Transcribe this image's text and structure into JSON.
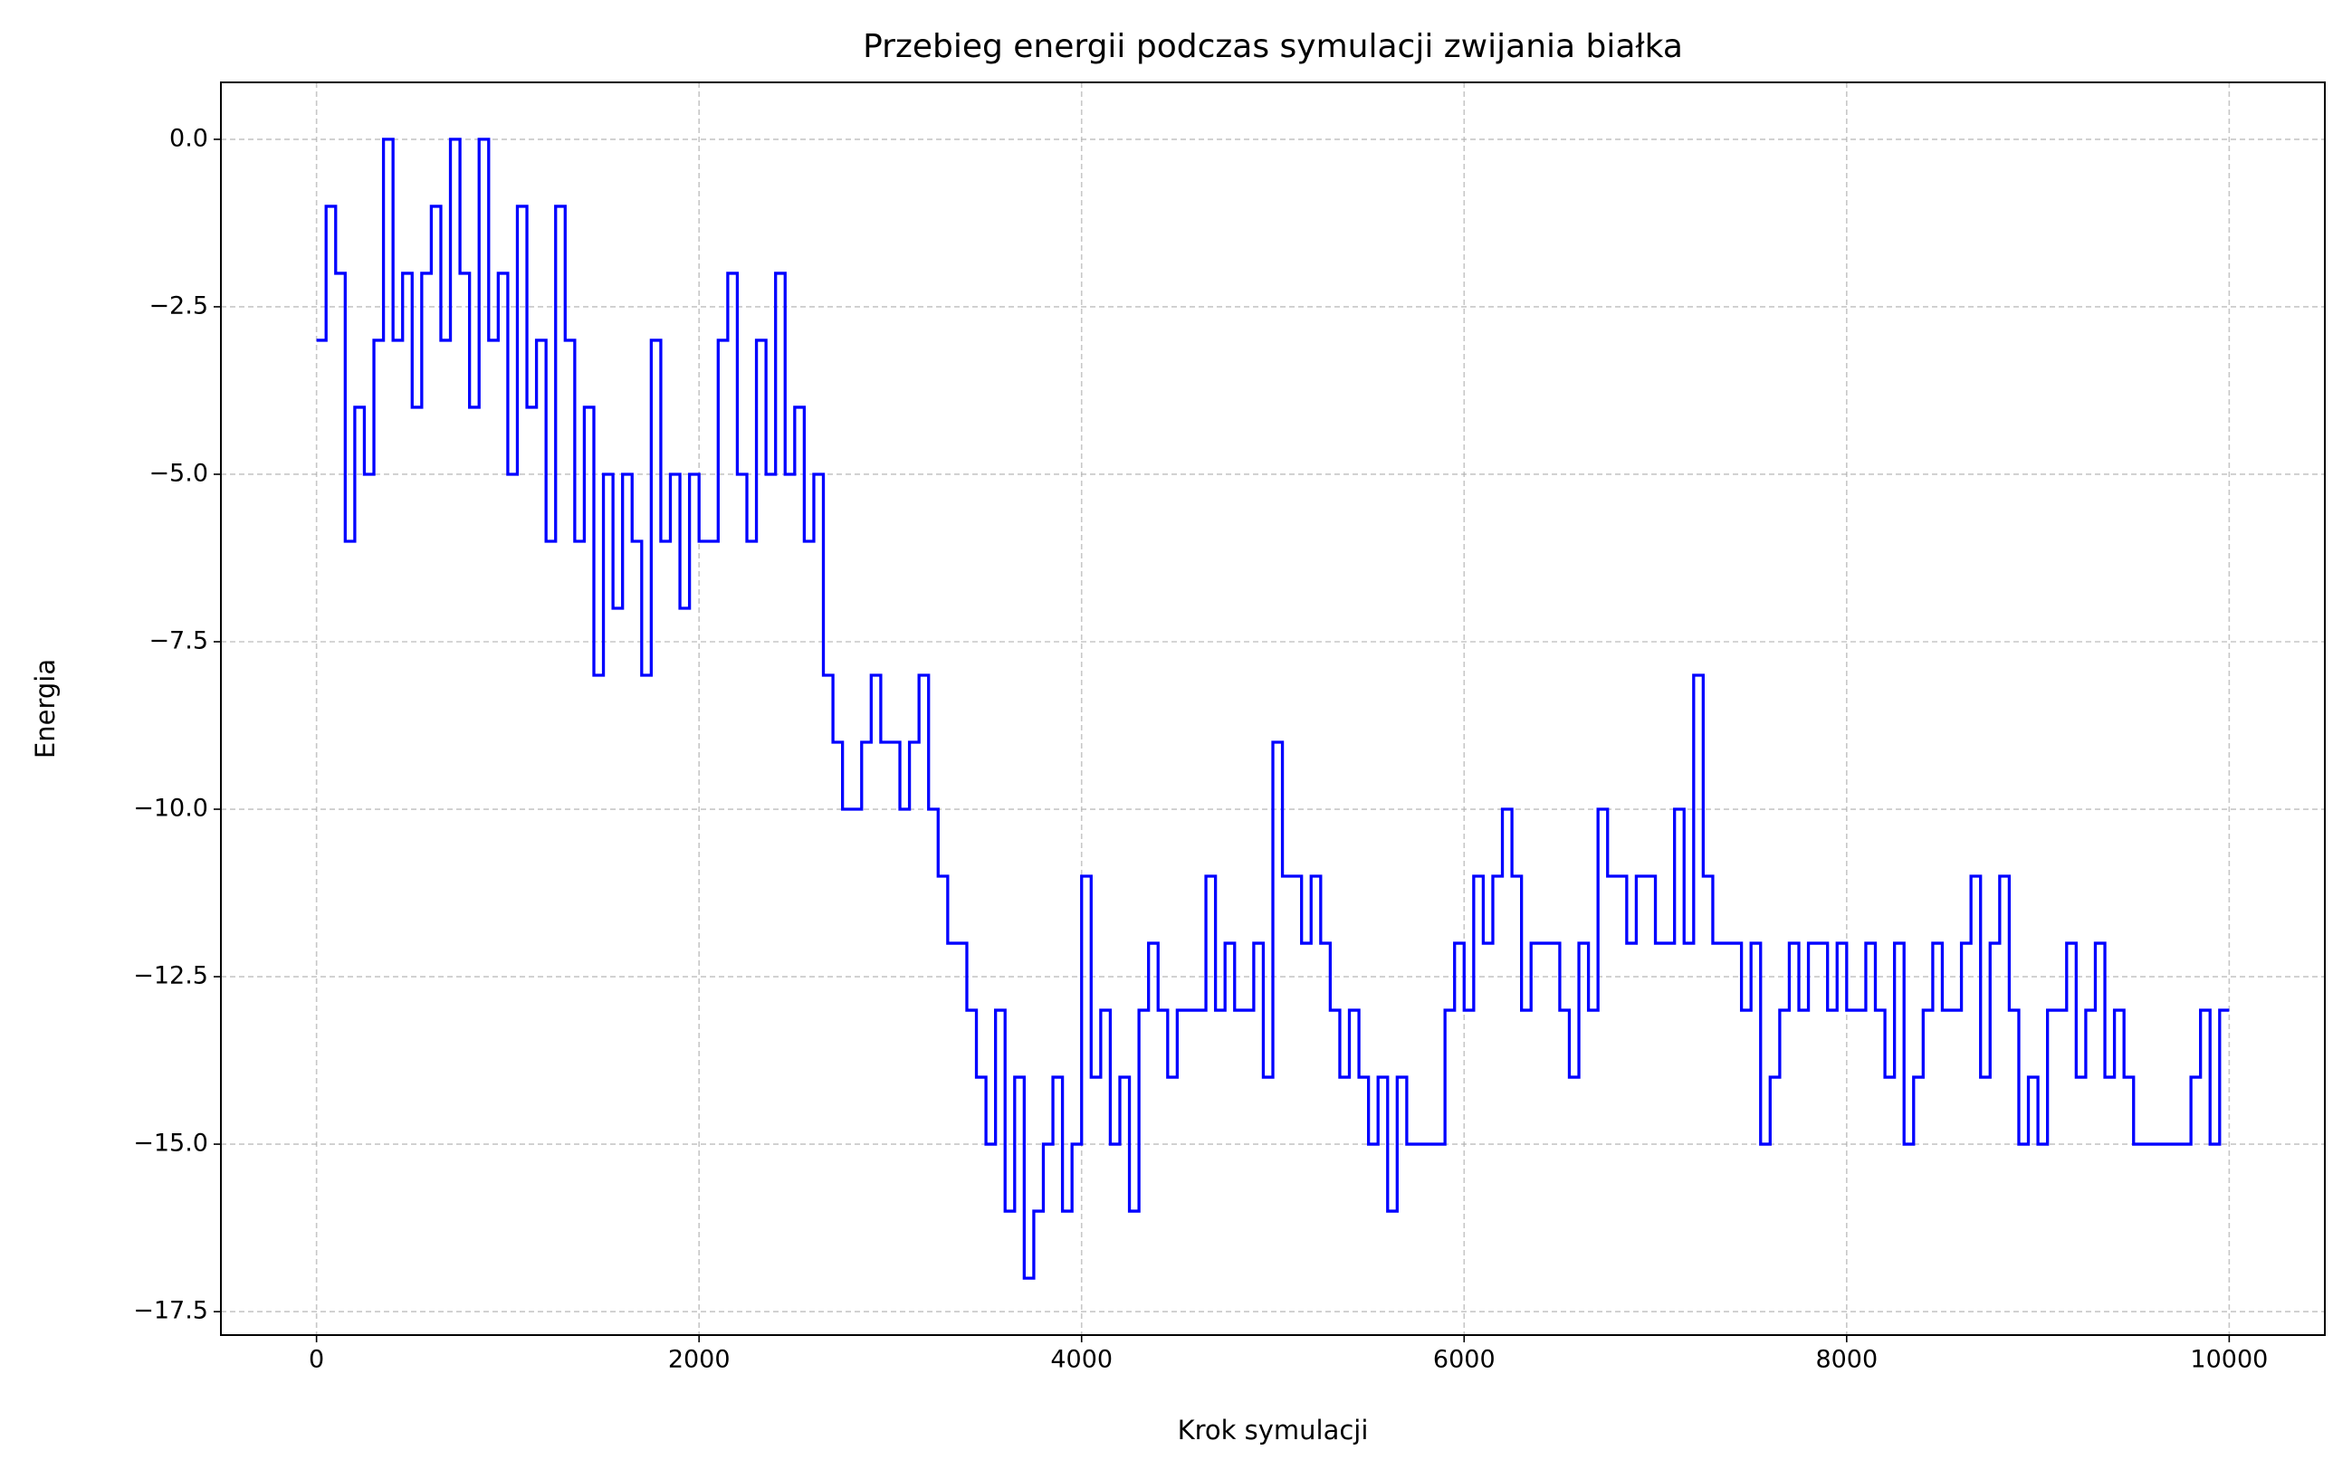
{
  "chart_data": {
    "type": "line",
    "title": "Przebieg energii podczas symulacji zwijania białka",
    "xlabel": "Krok symulacji",
    "ylabel": "Energia",
    "drawstyle": "steps-post",
    "grid": true,
    "xlim": [
      -500,
      10500
    ],
    "ylim": [
      -17.85,
      0.85
    ],
    "xticks": [
      0,
      2000,
      4000,
      6000,
      8000,
      10000
    ],
    "yticks": [
      {
        "value": 0,
        "label": "0.0"
      },
      {
        "value": -2.5,
        "label": "−2.5"
      },
      {
        "value": -5,
        "label": "−5.0"
      },
      {
        "value": -7.5,
        "label": "−7.5"
      },
      {
        "value": -10,
        "label": "−10.0"
      },
      {
        "value": -12.5,
        "label": "−12.5"
      },
      {
        "value": -15,
        "label": "−15.0"
      },
      {
        "value": -17.5,
        "label": "−17.5"
      }
    ],
    "x": [
      0,
      50,
      100,
      150,
      200,
      250,
      300,
      350,
      400,
      450,
      500,
      550,
      600,
      650,
      700,
      750,
      800,
      850,
      900,
      950,
      1000,
      1050,
      1100,
      1150,
      1200,
      1250,
      1300,
      1350,
      1400,
      1450,
      1500,
      1550,
      1600,
      1650,
      1700,
      1750,
      1800,
      1850,
      1900,
      1950,
      2000,
      2050,
      2100,
      2150,
      2200,
      2250,
      2300,
      2350,
      2400,
      2450,
      2500,
      2550,
      2600,
      2650,
      2700,
      2750,
      2800,
      2850,
      2900,
      2950,
      3000,
      3050,
      3100,
      3150,
      3200,
      3250,
      3300,
      3350,
      3400,
      3450,
      3500,
      3550,
      3600,
      3650,
      3700,
      3750,
      3800,
      3850,
      3900,
      3950,
      4000,
      4050,
      4100,
      4150,
      4200,
      4250,
      4300,
      4350,
      4400,
      4450,
      4500,
      4550,
      4600,
      4650,
      4700,
      4750,
      4800,
      4850,
      4900,
      4950,
      5000,
      5050,
      5100,
      5150,
      5200,
      5250,
      5300,
      5350,
      5400,
      5450,
      5500,
      5550,
      5600,
      5650,
      5700,
      5750,
      5800,
      5850,
      5900,
      5950,
      6000,
      6050,
      6100,
      6150,
      6200,
      6250,
      6300,
      6350,
      6400,
      6450,
      6500,
      6550,
      6600,
      6650,
      6700,
      6750,
      6800,
      6850,
      6900,
      6950,
      7000,
      7050,
      7100,
      7150,
      7200,
      7250,
      7300,
      7350,
      7400,
      7450,
      7500,
      7550,
      7600,
      7650,
      7700,
      7750,
      7800,
      7850,
      7900,
      7950,
      8000,
      8050,
      8100,
      8150,
      8200,
      8250,
      8300,
      8350,
      8400,
      8450,
      8500,
      8550,
      8600,
      8650,
      8700,
      8750,
      8800,
      8850,
      8900,
      8950,
      9000,
      9050,
      9100,
      9150,
      9200,
      9250,
      9300,
      9350,
      9400,
      9450,
      9500,
      9550,
      9600,
      9650,
      9700,
      9750,
      9800,
      9850,
      9900,
      9950,
      10000
    ],
    "series": [
      {
        "name": "Energia",
        "color": "#0000ff",
        "values": [
          -3,
          -1,
          -2,
          -6,
          -4,
          -5,
          -3,
          0,
          -3,
          -2,
          -4,
          -2,
          -1,
          -3,
          0,
          -2,
          -4,
          0,
          -3,
          -2,
          -5,
          -1,
          -4,
          -3,
          -6,
          -1,
          -3,
          -6,
          -4,
          -8,
          -5,
          -7,
          -5,
          -6,
          -8,
          -3,
          -6,
          -5,
          -7,
          -5,
          -6,
          -6,
          -3,
          -2,
          -5,
          -6,
          -3,
          -5,
          -2,
          -5,
          -4,
          -6,
          -5,
          -8,
          -9,
          -10,
          -10,
          -9,
          -8,
          -9,
          -9,
          -10,
          -9,
          -8,
          -10,
          -11,
          -12,
          -12,
          -13,
          -14,
          -15,
          -13,
          -16,
          -14,
          -17,
          -16,
          -15,
          -14,
          -16,
          -15,
          -11,
          -14,
          -13,
          -15,
          -14,
          -16,
          -13,
          -12,
          -13,
          -14,
          -13,
          -13,
          -13,
          -11,
          -13,
          -12,
          -13,
          -13,
          -12,
          -14,
          -9,
          -11,
          -11,
          -12,
          -11,
          -12,
          -13,
          -14,
          -13,
          -14,
          -15,
          -14,
          -16,
          -14,
          -15,
          -15,
          -15,
          -15,
          -13,
          -12,
          -13,
          -11,
          -12,
          -11,
          -10,
          -11,
          -13,
          -12,
          -12,
          -12,
          -13,
          -14,
          -12,
          -13,
          -10,
          -11,
          -11,
          -12,
          -11,
          -11,
          -12,
          -12,
          -10,
          -12,
          -8,
          -11,
          -12,
          -12,
          -12,
          -13,
          -12,
          -15,
          -14,
          -13,
          -12,
          -13,
          -12,
          -12,
          -13,
          -12,
          -13,
          -13,
          -12,
          -13,
          -14,
          -12,
          -15,
          -14,
          -13,
          -12,
          -13,
          -13,
          -12,
          -11,
          -14,
          -12,
          -11,
          -13,
          -15,
          -14,
          -15,
          -13,
          -13,
          -12,
          -14,
          -13,
          -12,
          -14,
          -13,
          -14,
          -15,
          -15,
          -15,
          -15,
          -15,
          -15,
          -14,
          -13,
          -15,
          -13,
          -13
        ]
      }
    ]
  }
}
